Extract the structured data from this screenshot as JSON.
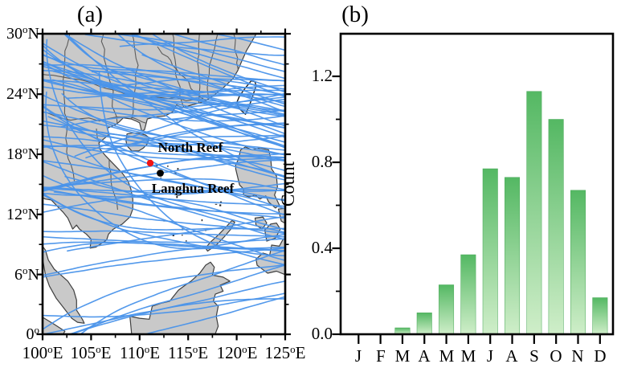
{
  "figure": {
    "background": "#ffffff"
  },
  "panel_a": {
    "title": "(a)",
    "lat_ticks": [
      {
        "value": "30",
        "deg": "o",
        "suffix": "N"
      },
      {
        "value": "24",
        "deg": "o",
        "suffix": "N"
      },
      {
        "value": "18",
        "deg": "o",
        "suffix": "N"
      },
      {
        "value": "12",
        "deg": "o",
        "suffix": "N"
      },
      {
        "value": "6",
        "deg": "o",
        "suffix": "N"
      },
      {
        "value": "0",
        "deg": "o",
        "suffix": ""
      }
    ],
    "lon_ticks": [
      {
        "value": "100",
        "deg": "o",
        "suffix": "E"
      },
      {
        "value": "105",
        "deg": "o",
        "suffix": "E"
      },
      {
        "value": "110",
        "deg": "o",
        "suffix": "E"
      },
      {
        "value": "115",
        "deg": "o",
        "suffix": "E"
      },
      {
        "value": "120",
        "deg": "o",
        "suffix": "E"
      },
      {
        "value": "125",
        "deg": "o",
        "suffix": "E"
      }
    ],
    "labels": {
      "north_reef": "North Reef",
      "langhua_reef": "Langhua Reef"
    },
    "markers": {
      "north_reef_color": "#f01414",
      "langhua_reef_color": "#000000"
    },
    "map": {
      "extent": {
        "lon_min": 100,
        "lon_max": 125,
        "lat_min": 0,
        "lat_max": 30
      },
      "land_color": "#c9c9c9",
      "outline_color": "#3f3f3f",
      "ocean_color": "#ffffff",
      "track_color": "#4a94ea",
      "track_count": 91
    }
  },
  "chart_data": {
    "type": "bar",
    "title": "(b)",
    "categories": [
      "J",
      "F",
      "M",
      "A",
      "M",
      "M",
      "J",
      "A",
      "S",
      "O",
      "N",
      "D"
    ],
    "values": [
      0,
      0,
      0.03,
      0.1,
      0.23,
      0.37,
      0.77,
      0.73,
      1.13,
      1.0,
      0.67,
      0.17
    ],
    "xlabel": "",
    "ylabel": "Count",
    "ylim": [
      0,
      1.4
    ],
    "yticks": [
      0.0,
      0.4,
      0.8,
      1.2
    ],
    "ytick_labels": [
      "0.0",
      "0.4",
      "0.8",
      "1.2"
    ],
    "yticks_minor": [
      0.2,
      0.6,
      1.0
    ],
    "grid": false,
    "legend": null,
    "bar_color_top": "#54b863",
    "bar_color_bottom": "#cfeec9"
  }
}
